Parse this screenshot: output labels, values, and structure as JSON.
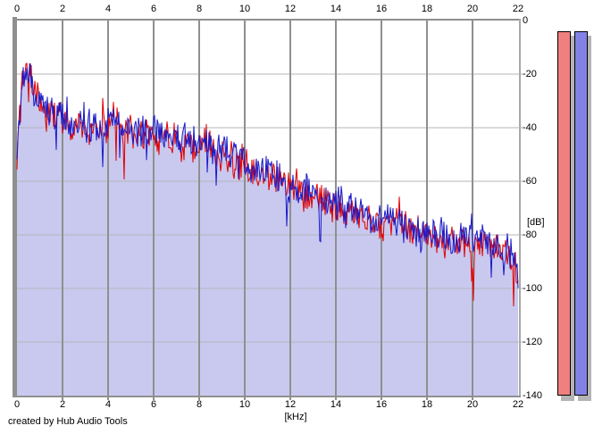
{
  "watermark": "created by Hub Audio Tools",
  "x_axis": {
    "label": "[kHz]",
    "ticks": [
      "0",
      "2",
      "4",
      "6",
      "8",
      "10",
      "12",
      "14",
      "16",
      "18",
      "20",
      "22"
    ]
  },
  "y_axis": {
    "label": "[dB]",
    "ticks": [
      "0",
      "-20",
      "-40",
      "-60",
      "-80",
      "-100",
      "-120",
      "-140"
    ]
  },
  "colors": {
    "page_bg": "#ffffff",
    "plot_bg": "#ffffff",
    "grid_vertical": "#8f8f8f",
    "grid_horizontal": "#b4b4bc",
    "area_fill": "#c9c9ef",
    "left_trace": "#e10000",
    "right_trace": "#1a1ac8",
    "meter_shadow": "#b4b4b4"
  },
  "chart_data": {
    "type": "area",
    "title": "",
    "xlabel": "[kHz]",
    "ylabel": "[dB]",
    "xlim": [
      0,
      22
    ],
    "ylim": [
      -140,
      0
    ],
    "grid": true,
    "x_tick_step_khz": 2,
    "y_tick_step_db": 20,
    "envelope_points_khz_db": [
      [
        0.0,
        -52
      ],
      [
        0.1,
        -36
      ],
      [
        0.2,
        -26
      ],
      [
        0.35,
        -21
      ],
      [
        0.55,
        -20
      ],
      [
        0.75,
        -26
      ],
      [
        1.0,
        -31
      ],
      [
        1.3,
        -34
      ],
      [
        1.7,
        -36
      ],
      [
        2.0,
        -37
      ],
      [
        2.5,
        -39
      ],
      [
        3.0,
        -40
      ],
      [
        3.5,
        -41
      ],
      [
        3.9,
        -40
      ],
      [
        4.3,
        -36
      ],
      [
        4.7,
        -41
      ],
      [
        5.2,
        -43
      ],
      [
        6.0,
        -43
      ],
      [
        6.5,
        -44
      ],
      [
        7.0,
        -45
      ],
      [
        7.6,
        -46
      ],
      [
        8.2,
        -45
      ],
      [
        8.7,
        -48
      ],
      [
        9.3,
        -51
      ],
      [
        10.0,
        -54
      ],
      [
        10.7,
        -57
      ],
      [
        11.4,
        -59
      ],
      [
        12.0,
        -62
      ],
      [
        12.7,
        -64
      ],
      [
        13.4,
        -67
      ],
      [
        14.0,
        -69
      ],
      [
        14.7,
        -72
      ],
      [
        15.3,
        -74
      ],
      [
        16.0,
        -77
      ],
      [
        16.6,
        -74
      ],
      [
        17.2,
        -79
      ],
      [
        18.0,
        -81
      ],
      [
        19.0,
        -82
      ],
      [
        20.0,
        -83
      ],
      [
        21.0,
        -84
      ],
      [
        21.6,
        -86
      ],
      [
        22.0,
        -94
      ]
    ],
    "noise_peak_db": 8,
    "series": [
      {
        "name": "left-channel-spectrum",
        "color": "#e10000",
        "fill": "#c9c9ef",
        "seed": 911,
        "offset_db": 0
      },
      {
        "name": "right-channel-spectrum",
        "color": "#1a1ac8",
        "fill": "#c9c9ef",
        "seed": 412,
        "offset_db": 1
      }
    ]
  },
  "meters": {
    "bars": [
      {
        "name": "left-channel-level",
        "fill": "#f08080",
        "border": "#000000",
        "top_db": -4,
        "bottom_db": -140
      },
      {
        "name": "right-channel-level",
        "fill": "#8282e6",
        "border": "#000000",
        "top_db": -4,
        "bottom_db": -140
      }
    ]
  }
}
